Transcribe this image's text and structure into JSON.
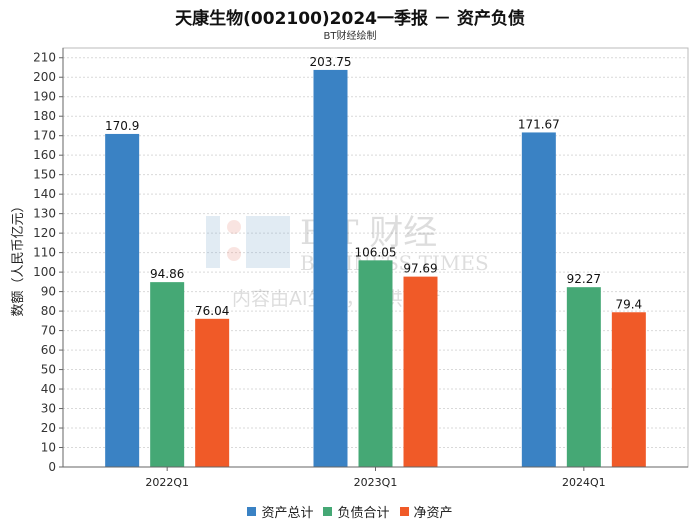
{
  "chart_data": {
    "type": "bar",
    "title": "天康生物(002100)2024一季报 － 资产负债",
    "subtitle": "BT财经绘制",
    "ylabel": "数额（人民币亿元）",
    "xlabel": "",
    "ylim": [
      0,
      215
    ],
    "yticks": [
      0,
      10,
      20,
      30,
      40,
      50,
      60,
      70,
      80,
      90,
      100,
      110,
      120,
      130,
      140,
      150,
      160,
      170,
      180,
      190,
      200,
      210
    ],
    "categories": [
      "2022Q1",
      "2023Q1",
      "2024Q1"
    ],
    "series": [
      {
        "name": "资产总计",
        "color": "#3a82c4",
        "values": [
          170.9,
          203.75,
          171.67
        ],
        "labels": [
          "170.9",
          "203.75",
          "171.67"
        ]
      },
      {
        "name": "负债合计",
        "color": "#45a875",
        "values": [
          94.86,
          106.05,
          92.27
        ],
        "labels": [
          "94.86",
          "106.05",
          "92.27"
        ]
      },
      {
        "name": "净资产",
        "color": "#f05a28",
        "values": [
          76.04,
          97.69,
          79.4
        ],
        "labels": [
          "76.04",
          "97.69",
          "79.4"
        ]
      }
    ],
    "grid": true,
    "legend_position": "bottom"
  },
  "watermark": {
    "brand": "BT财经",
    "brand_en": "BUSINESS TIMES",
    "note": "内容由AI生成，仅供参考"
  }
}
